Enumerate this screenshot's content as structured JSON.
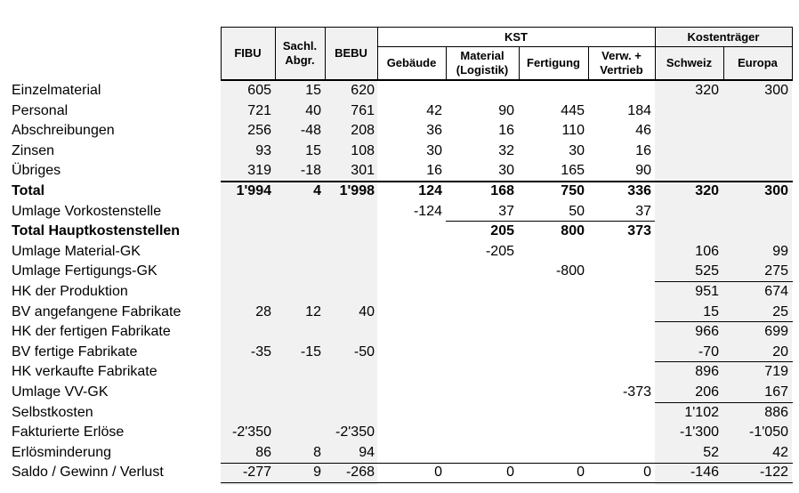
{
  "headers": {
    "fibu": "FIBU",
    "sachl": [
      "Sachl.",
      "Abgr."
    ],
    "bebu": "BEBU",
    "kst_group": "KST",
    "gebaeude": "Gebäude",
    "material": [
      "Material",
      "(Logistik)"
    ],
    "fertigung": "Fertigung",
    "verw": [
      "Verw. +",
      "Vertrieb"
    ],
    "kt_group": "Kostenträger",
    "schweiz": "Schweiz",
    "europa": "Europa"
  },
  "columns": [
    "fibu",
    "sachl",
    "bebu",
    "gebaeude",
    "material",
    "fertigung",
    "verw",
    "schweiz",
    "europa"
  ],
  "rows": [
    {
      "label": "Einzelmaterial",
      "bold": false,
      "fibu": "605",
      "sachl": "15",
      "bebu": "620",
      "schweiz": "320",
      "europa": "300"
    },
    {
      "label": "Personal",
      "bold": false,
      "fibu": "721",
      "sachl": "40",
      "bebu": "761",
      "gebaeude": "42",
      "material": "90",
      "fertigung": "445",
      "verw": "184"
    },
    {
      "label": "Abschreibungen",
      "bold": false,
      "fibu": "256",
      "sachl": "-48",
      "bebu": "208",
      "gebaeude": "36",
      "material": "16",
      "fertigung": "110",
      "verw": "46"
    },
    {
      "label": "Zinsen",
      "bold": false,
      "fibu": "93",
      "sachl": "15",
      "bebu": "108",
      "gebaeude": "30",
      "material": "32",
      "fertigung": "30",
      "verw": "16"
    },
    {
      "label": "Übriges",
      "bold": false,
      "fibu": "319",
      "sachl": "-18",
      "bebu": "301",
      "gebaeude": "16",
      "material": "30",
      "fertigung": "165",
      "verw": "90"
    },
    {
      "label": "Total",
      "bold": true,
      "fibu": "1'994",
      "sachl": "4",
      "bebu": "1'998",
      "gebaeude": "124",
      "material": "168",
      "fertigung": "750",
      "verw": "336",
      "schweiz": "320",
      "europa": "300"
    },
    {
      "label": "Umlage Vorkostenstelle",
      "bold": false,
      "gebaeude": "-124",
      "material": "37",
      "fertigung": "50",
      "verw": "37"
    },
    {
      "label": "Total Hauptkostenstellen",
      "bold": true,
      "material": "205",
      "fertigung": "800",
      "verw": "373"
    },
    {
      "label": "Umlage Material-GK",
      "bold": false,
      "material": "-205",
      "schweiz": "106",
      "europa": "99"
    },
    {
      "label": "Umlage Fertigungs-GK",
      "bold": false,
      "fertigung": "-800",
      "schweiz": "525",
      "europa": "275"
    },
    {
      "label": "HK der Produktion",
      "bold": false,
      "schweiz": "951",
      "europa": "674"
    },
    {
      "label": "BV angefangene Fabrikate",
      "bold": false,
      "fibu": "28",
      "sachl": "12",
      "bebu": "40",
      "schweiz": "15",
      "europa": "25"
    },
    {
      "label": "HK der fertigen Fabrikate",
      "bold": false,
      "schweiz": "966",
      "europa": "699"
    },
    {
      "label": "BV fertige Fabrikate",
      "bold": false,
      "fibu": "-35",
      "sachl": "-15",
      "bebu": "-50",
      "schweiz": "-70",
      "europa": "20"
    },
    {
      "label": "HK verkaufte Fabrikate",
      "bold": false,
      "schweiz": "896",
      "europa": "719"
    },
    {
      "label": "Umlage VV-GK",
      "bold": false,
      "verw": "-373",
      "schweiz": "206",
      "europa": "167"
    },
    {
      "label": "Selbstkosten",
      "bold": false,
      "schweiz": "1'102",
      "europa": "886"
    },
    {
      "label": "Fakturierte Erlöse",
      "bold": false,
      "fibu": "-2'350",
      "bebu": "-2'350",
      "schweiz": "-1'300",
      "europa": "-1'050"
    },
    {
      "label": "Erlösminderung",
      "bold": false,
      "fibu": "86",
      "sachl": "8",
      "bebu": "94",
      "schweiz": "52",
      "europa": "42"
    },
    {
      "label": "Saldo / Gewinn / Verlust",
      "bold": false,
      "fibu": "-277",
      "sachl": "9",
      "bebu": "-268",
      "gebaeude": "0",
      "material": "0",
      "fertigung": "0",
      "verw": "0",
      "schweiz": "-146",
      "europa": "-122"
    }
  ]
}
